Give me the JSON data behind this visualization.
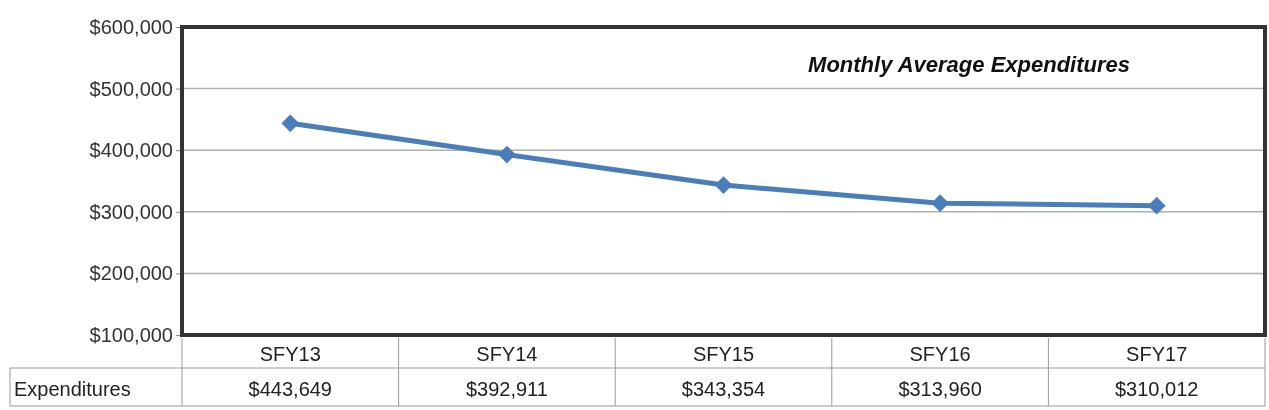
{
  "chart_data": {
    "type": "line",
    "title": "Monthly Average Expenditures",
    "categories": [
      "SFY13",
      "SFY14",
      "SFY15",
      "SFY16",
      "SFY17"
    ],
    "series": [
      {
        "name": "Expenditures",
        "color": "#4a7ebb",
        "values": [
          443649,
          392911,
          343354,
          313960,
          310012
        ],
        "value_labels": [
          "$443,649",
          "$392,911",
          "$343,354",
          "$313,960",
          "$310,012"
        ]
      }
    ],
    "ylim": [
      100000,
      600000
    ],
    "yticks": [
      {
        "value": 100000,
        "label": "$100,000"
      },
      {
        "value": 200000,
        "label": "$200,000"
      },
      {
        "value": 300000,
        "label": "$300,000"
      },
      {
        "value": 400000,
        "label": "$400,000"
      },
      {
        "value": 500000,
        "label": "$500,000"
      },
      {
        "value": 600000,
        "label": "$600,000"
      }
    ],
    "grid": "y",
    "marker": "diamond",
    "line_style": "solid"
  }
}
